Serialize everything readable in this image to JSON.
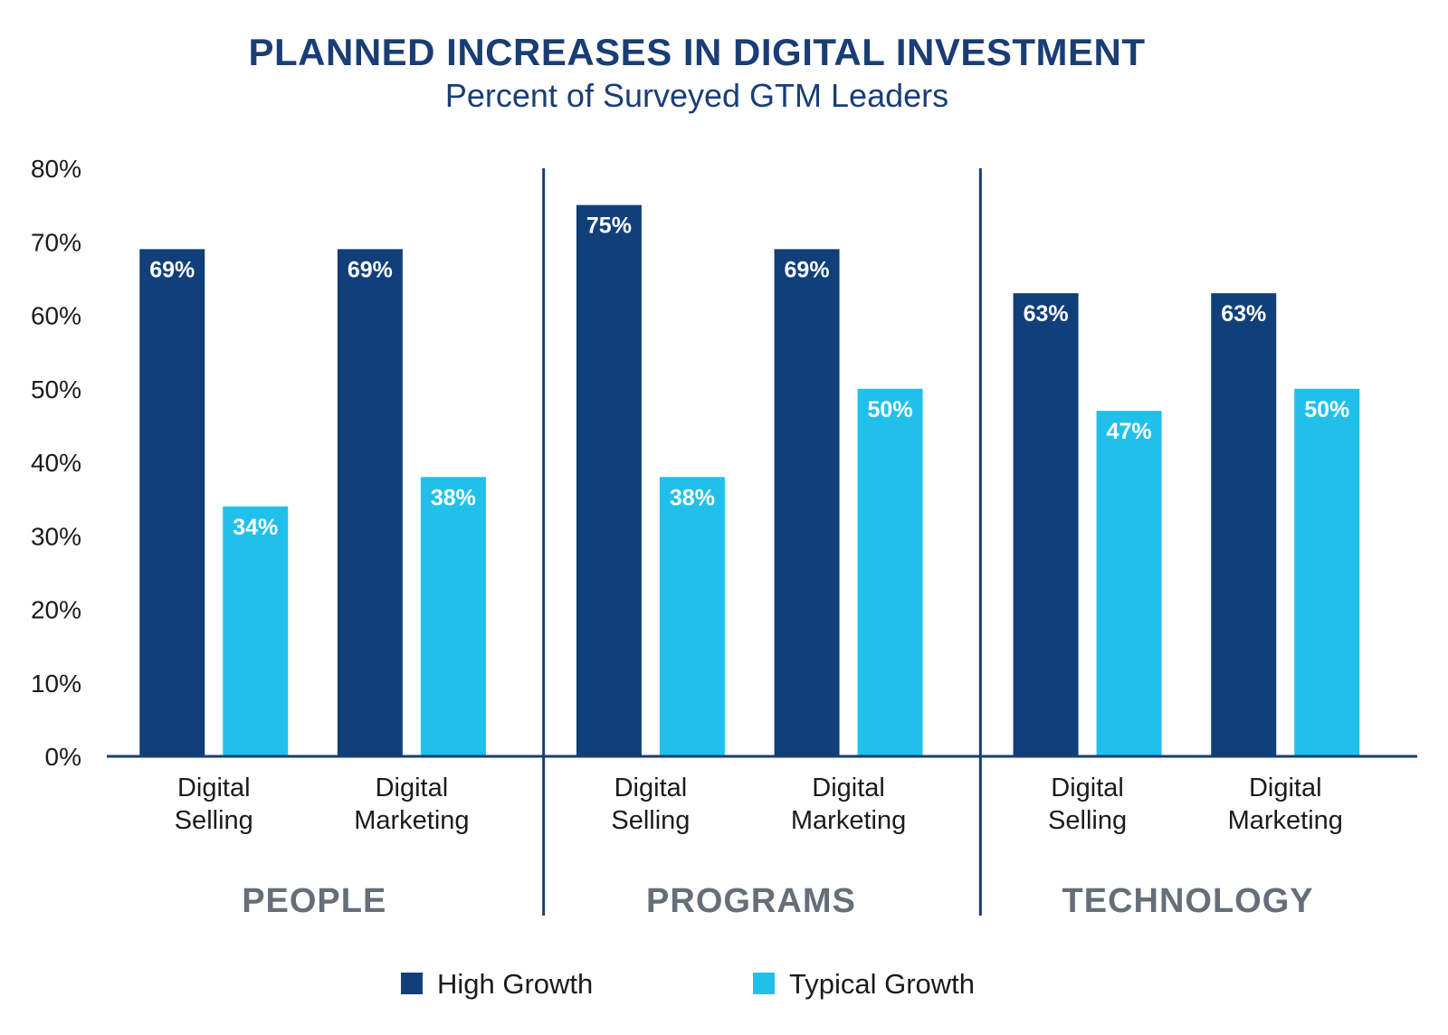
{
  "chart_data": {
    "type": "bar",
    "title": "PLANNED INCREASES IN DIGITAL INVESTMENT",
    "subtitle": "Percent of Surveyed GTM Leaders",
    "ylim": [
      0,
      80
    ],
    "yticks": [
      "0%",
      "10%",
      "20%",
      "30%",
      "40%",
      "50%",
      "60%",
      "70%",
      "80%"
    ],
    "ytick_values": [
      0,
      10,
      20,
      30,
      40,
      50,
      60,
      70,
      80
    ],
    "value_suffix": "%",
    "groups": [
      "PEOPLE",
      "PROGRAMS",
      "TECHNOLOGY"
    ],
    "categories": [
      [
        "Digital",
        "Selling"
      ],
      [
        "Digital",
        "Marketing"
      ],
      [
        "Digital",
        "Selling"
      ],
      [
        "Digital",
        "Marketing"
      ],
      [
        "Digital",
        "Selling"
      ],
      [
        "Digital",
        "Marketing"
      ]
    ],
    "series": [
      {
        "name": "High Growth",
        "values": [
          69,
          69,
          75,
          69,
          63,
          63
        ]
      },
      {
        "name": "Typical Growth",
        "values": [
          34,
          38,
          38,
          50,
          47,
          50
        ]
      }
    ],
    "legend_position": "bottom",
    "grid": false
  },
  "colors": {
    "title": "#1a3d75",
    "high_growth": "#113f79",
    "typical_growth": "#21c0eb",
    "axis": "#1a3d75",
    "tick_text": "#1b1b1b",
    "group_text": "#666e78",
    "bar_label": "#ffffff"
  }
}
